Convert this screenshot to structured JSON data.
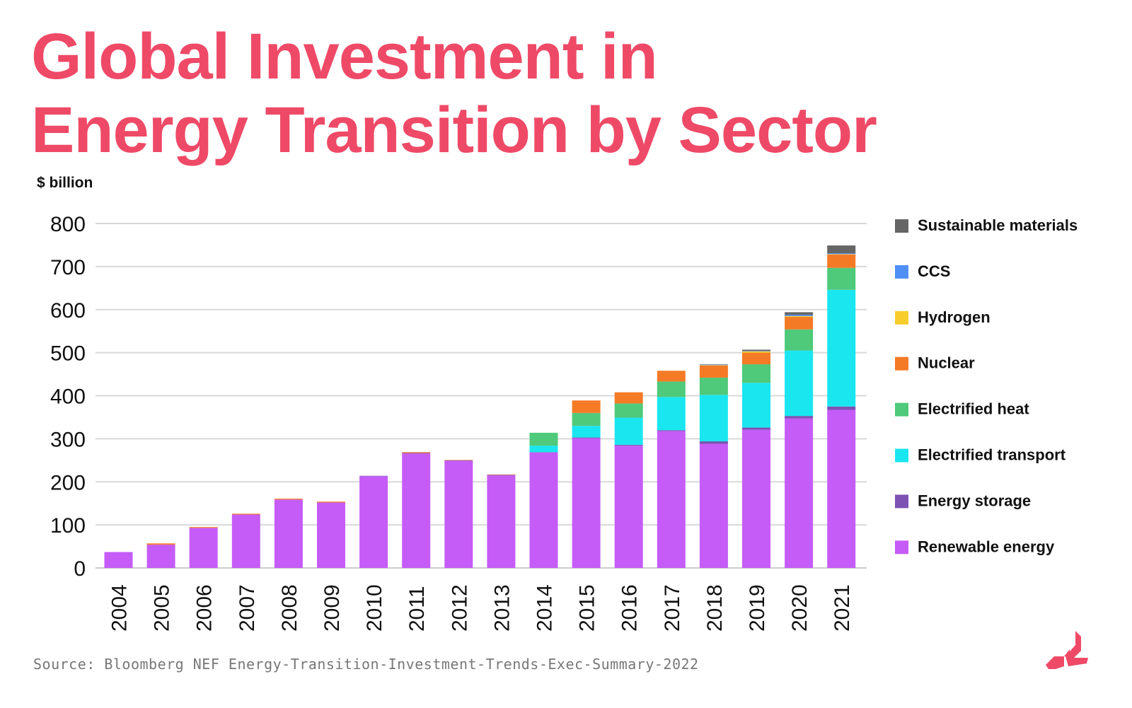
{
  "title_line1": "Global Investment in",
  "title_line2": "Energy Transition by Sector",
  "unit_label": "$ billion",
  "source": "Source: Bloomberg NEF Energy-Transition-Investment-Trends-Exec-Summary-2022",
  "logo_icon": "brand-logo-icon",
  "chart_data": {
    "type": "bar",
    "stacked": true,
    "ylabel": "$ billion",
    "ylim": [
      0,
      800
    ],
    "yticks": [
      0,
      100,
      200,
      300,
      400,
      500,
      600,
      700,
      800
    ],
    "grid": true,
    "legend_position": "right",
    "categories": [
      "2004",
      "2005",
      "2006",
      "2007",
      "2008",
      "2009",
      "2010",
      "2011",
      "2012",
      "2013",
      "2014",
      "2015",
      "2016",
      "2017",
      "2018",
      "2019",
      "2020",
      "2021"
    ],
    "series": [
      {
        "name": "Renewable energy",
        "color": "#c55cf7",
        "values": [
          37,
          54,
          93,
          124,
          159,
          152,
          213,
          266,
          249,
          215,
          268,
          301,
          284,
          318,
          288,
          321,
          347,
          367
        ]
      },
      {
        "name": "Energy storage",
        "color": "#7d52b3",
        "values": [
          0,
          0,
          0,
          0,
          0,
          0,
          1,
          1,
          1,
          1,
          1,
          2,
          2,
          2,
          6,
          5,
          6,
          8
        ]
      },
      {
        "name": "Electrified transport",
        "color": "#1ae6f0",
        "values": [
          0,
          0,
          0,
          0,
          0,
          0,
          0,
          0,
          0,
          0,
          15,
          27,
          63,
          77,
          108,
          104,
          152,
          271
        ]
      },
      {
        "name": "Electrified heat",
        "color": "#4fc97a",
        "values": [
          0,
          0,
          0,
          0,
          0,
          0,
          0,
          0,
          0,
          0,
          30,
          30,
          33,
          36,
          40,
          43,
          49,
          51
        ]
      },
      {
        "name": "Nuclear",
        "color": "#f47a26",
        "values": [
          0,
          3,
          2,
          2,
          2,
          2,
          0,
          2,
          1,
          1,
          0,
          29,
          26,
          25,
          28,
          27,
          29,
          31
        ]
      },
      {
        "name": "Hydrogen",
        "color": "#f7cd2c",
        "values": [
          0,
          0,
          0,
          0,
          0,
          0,
          0,
          0,
          0,
          0,
          0,
          0,
          0,
          0,
          1,
          3,
          2,
          1
        ]
      },
      {
        "name": "CCS",
        "color": "#4f8ef5",
        "values": [
          0,
          0,
          0,
          0,
          0,
          0,
          0,
          0,
          0,
          0,
          0,
          0,
          0,
          0,
          1,
          1,
          3,
          2
        ]
      },
      {
        "name": "Sustainable materials",
        "color": "#666666",
        "values": [
          0,
          0,
          0,
          0,
          0,
          0,
          0,
          0,
          0,
          0,
          0,
          0,
          0,
          0,
          1,
          3,
          6,
          18
        ]
      }
    ],
    "legend_order": [
      "Sustainable materials",
      "CCS",
      "Hydrogen",
      "Nuclear",
      "Electrified heat",
      "Electrified transport",
      "Energy storage",
      "Renewable energy"
    ]
  }
}
